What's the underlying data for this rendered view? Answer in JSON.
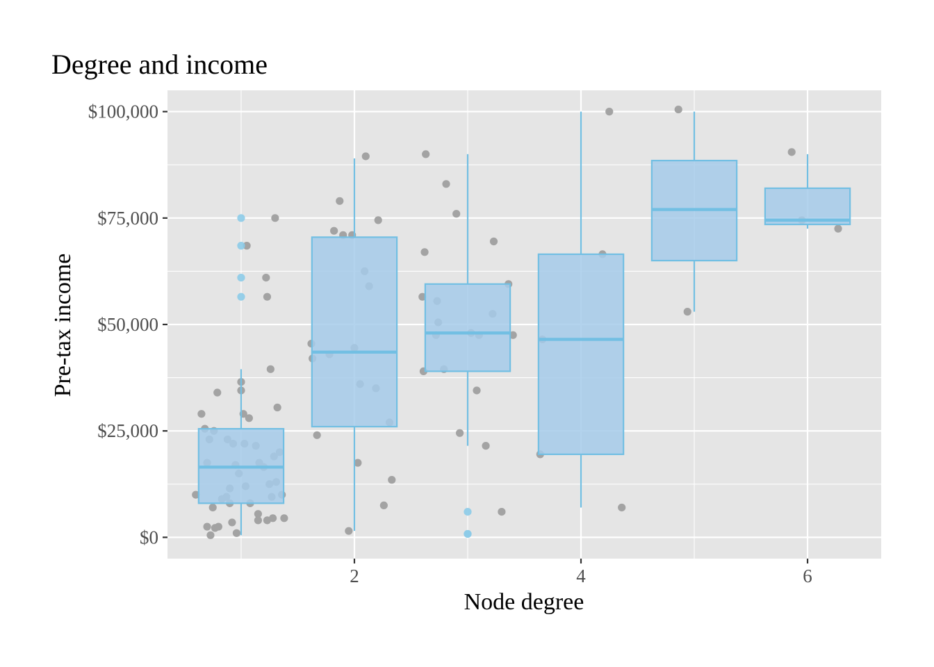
{
  "chart_data": {
    "type": "boxplot",
    "title": "Degree and income",
    "xlabel": "Node degree",
    "ylabel": "Pre-tax income",
    "xlim": [
      0.35,
      6.65
    ],
    "ylim": [
      -5000,
      105000
    ],
    "x_ticks": [
      2,
      4,
      6
    ],
    "x_tick_labels": [
      "2",
      "4",
      "6"
    ],
    "y_ticks": [
      0,
      25000,
      50000,
      75000,
      100000
    ],
    "y_tick_labels": [
      "$0",
      "$25,000",
      "$50,000",
      "$75,000",
      "$100,000"
    ],
    "grid": true,
    "legend": "none",
    "colors": {
      "panel_background": "#e5e5e5",
      "grid_line": "#ffffff",
      "box_fill": "#a6cbea",
      "box_stroke": "#72bfe3",
      "outlier": "#8ccbe8",
      "point": "#a3a3a3"
    },
    "boxes": [
      {
        "x": 1,
        "whisker_low": 500,
        "q1": 8000,
        "median": 16500,
        "q3": 25500,
        "whisker_high": 39500,
        "outliers": [
          75000,
          68500,
          61000,
          56500
        ]
      },
      {
        "x": 2,
        "whisker_low": 1500,
        "q1": 26000,
        "median": 43500,
        "q3": 70500,
        "whisker_high": 89000,
        "outliers": []
      },
      {
        "x": 3,
        "whisker_low": 21500,
        "q1": 39000,
        "median": 48000,
        "q3": 59500,
        "whisker_high": 90000,
        "outliers": [
          6000,
          800,
          800
        ]
      },
      {
        "x": 4,
        "whisker_low": 7000,
        "q1": 19500,
        "median": 46500,
        "q3": 66500,
        "whisker_high": 100000,
        "outliers": []
      },
      {
        "x": 5,
        "whisker_low": 53000,
        "q1": 65000,
        "median": 77000,
        "q3": 88500,
        "whisker_high": 100000,
        "outliers": []
      },
      {
        "x": 6,
        "whisker_low": 72500,
        "q1": 73500,
        "median": 74500,
        "q3": 82000,
        "whisker_high": 90000,
        "outliers": []
      }
    ],
    "points": [
      [
        0.6,
        10000
      ],
      [
        0.65,
        29000
      ],
      [
        0.68,
        25500
      ],
      [
        0.7,
        17500
      ],
      [
        0.7,
        2500
      ],
      [
        0.72,
        23000
      ],
      [
        0.73,
        500
      ],
      [
        0.75,
        7000
      ],
      [
        0.76,
        25000
      ],
      [
        0.77,
        2200
      ],
      [
        0.79,
        34000
      ],
      [
        0.8,
        2500
      ],
      [
        0.83,
        9000
      ],
      [
        0.87,
        9500
      ],
      [
        0.88,
        23000
      ],
      [
        0.9,
        8000
      ],
      [
        0.9,
        11500
      ],
      [
        0.92,
        3500
      ],
      [
        0.93,
        22000
      ],
      [
        0.95,
        17000
      ],
      [
        0.96,
        1000
      ],
      [
        0.98,
        15000
      ],
      [
        1.0,
        36500
      ],
      [
        1.0,
        34500
      ],
      [
        1.02,
        29000
      ],
      [
        1.03,
        22000
      ],
      [
        1.04,
        12000
      ],
      [
        1.05,
        68500
      ],
      [
        1.07,
        28000
      ],
      [
        1.08,
        8000
      ],
      [
        1.13,
        21500
      ],
      [
        1.15,
        5500
      ],
      [
        1.15,
        4000
      ],
      [
        1.16,
        17500
      ],
      [
        1.2,
        16500
      ],
      [
        1.22,
        61000
      ],
      [
        1.23,
        56500
      ],
      [
        1.23,
        4000
      ],
      [
        1.25,
        12500
      ],
      [
        1.26,
        39500
      ],
      [
        1.27,
        9500
      ],
      [
        1.28,
        4500
      ],
      [
        1.29,
        19000
      ],
      [
        1.3,
        75000
      ],
      [
        1.31,
        13000
      ],
      [
        1.32,
        30500
      ],
      [
        1.34,
        20000
      ],
      [
        1.36,
        10000
      ],
      [
        1.38,
        4500
      ],
      [
        1.62,
        45500
      ],
      [
        1.63,
        42000
      ],
      [
        1.67,
        24000
      ],
      [
        1.78,
        43000
      ],
      [
        1.82,
        72000
      ],
      [
        1.87,
        79000
      ],
      [
        1.9,
        71000
      ],
      [
        1.95,
        1500
      ],
      [
        1.98,
        71000
      ],
      [
        2.0,
        44500
      ],
      [
        2.03,
        17500
      ],
      [
        2.05,
        36000
      ],
      [
        2.09,
        62500
      ],
      [
        2.1,
        89500
      ],
      [
        2.13,
        59000
      ],
      [
        2.19,
        35000
      ],
      [
        2.21,
        74500
      ],
      [
        2.26,
        7500
      ],
      [
        2.31,
        27000
      ],
      [
        2.33,
        13500
      ],
      [
        2.6,
        56500
      ],
      [
        2.61,
        39000
      ],
      [
        2.62,
        67000
      ],
      [
        2.63,
        90000
      ],
      [
        2.72,
        47500
      ],
      [
        2.73,
        55500
      ],
      [
        2.74,
        50500
      ],
      [
        2.79,
        39500
      ],
      [
        2.81,
        83000
      ],
      [
        2.9,
        76000
      ],
      [
        2.93,
        24500
      ],
      [
        3.03,
        48000
      ],
      [
        3.08,
        34500
      ],
      [
        3.1,
        47500
      ],
      [
        3.16,
        21500
      ],
      [
        3.22,
        52500
      ],
      [
        3.23,
        69500
      ],
      [
        3.3,
        6000
      ],
      [
        3.36,
        59500
      ],
      [
        3.4,
        47500
      ],
      [
        3.64,
        19500
      ],
      [
        3.66,
        46500
      ],
      [
        4.19,
        66500
      ],
      [
        4.25,
        100000
      ],
      [
        4.36,
        7000
      ],
      [
        4.86,
        100500
      ],
      [
        4.94,
        53000
      ],
      [
        5.86,
        90500
      ],
      [
        5.95,
        74500
      ],
      [
        6.27,
        72500
      ]
    ]
  }
}
